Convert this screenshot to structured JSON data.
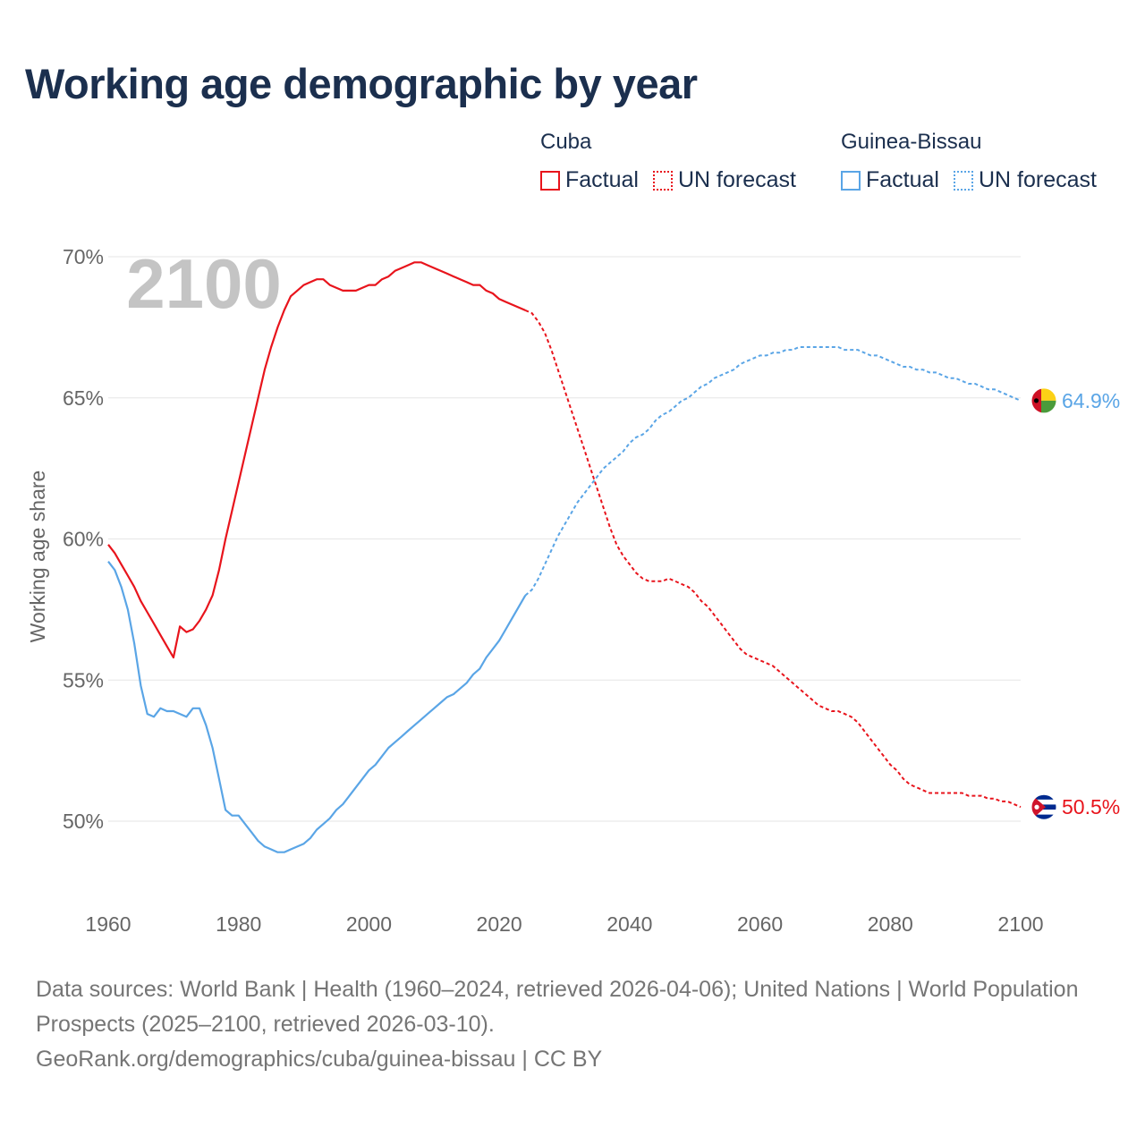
{
  "title": "Working age demographic by year",
  "legend": {
    "groups": [
      {
        "country": "Cuba",
        "color": "#e8141c",
        "factual_label": "Factual",
        "forecast_label": "UN forecast"
      },
      {
        "country": "Guinea-Bissau",
        "color": "#5aa5e6",
        "factual_label": "Factual",
        "forecast_label": "UN forecast"
      }
    ]
  },
  "year_watermark": "2100",
  "footer": {
    "sources": "Data sources: World Bank | Health (1960–2024, retrieved 2026-04-06); United Nations | World Population Prospects (2025–2100, retrieved 2026-03-10).",
    "credit": "GeoRank.org/demographics/cuba/guinea-bissau | CC BY"
  },
  "chart_data": {
    "type": "line",
    "title": "Working age demographic by year",
    "xlabel": "",
    "ylabel": "Working age share",
    "xlim": [
      1960,
      2100
    ],
    "ylim": [
      47.5,
      70.5
    ],
    "x_ticks": [
      "1960",
      "1980",
      "2000",
      "2020",
      "2040",
      "2060",
      "2080",
      "2100"
    ],
    "x_tick_values": [
      1960,
      1980,
      2000,
      2020,
      2040,
      2060,
      2080,
      2100
    ],
    "y_ticks": [
      "50%",
      "55%",
      "60%",
      "65%",
      "70%"
    ],
    "y_tick_values": [
      50,
      55,
      60,
      65,
      70
    ],
    "grid": true,
    "forecast_start": 2024,
    "series": [
      {
        "name": "Cuba",
        "color": "#e8141c",
        "end_label": "50.5%",
        "flag": "cuba",
        "factual": [
          [
            1960,
            59.8
          ],
          [
            1961,
            59.5
          ],
          [
            1962,
            59.1
          ],
          [
            1963,
            58.7
          ],
          [
            1964,
            58.3
          ],
          [
            1965,
            57.8
          ],
          [
            1966,
            57.4
          ],
          [
            1967,
            57.0
          ],
          [
            1968,
            56.6
          ],
          [
            1969,
            56.2
          ],
          [
            1970,
            55.8
          ],
          [
            1971,
            56.9
          ],
          [
            1972,
            56.7
          ],
          [
            1973,
            56.8
          ],
          [
            1974,
            57.1
          ],
          [
            1975,
            57.5
          ],
          [
            1976,
            58.0
          ],
          [
            1977,
            58.9
          ],
          [
            1978,
            60.0
          ],
          [
            1979,
            61.0
          ],
          [
            1980,
            62.0
          ],
          [
            1981,
            63.0
          ],
          [
            1982,
            64.0
          ],
          [
            1983,
            65.0
          ],
          [
            1984,
            66.0
          ],
          [
            1985,
            66.8
          ],
          [
            1986,
            67.5
          ],
          [
            1987,
            68.1
          ],
          [
            1988,
            68.6
          ],
          [
            1989,
            68.8
          ],
          [
            1990,
            69.0
          ],
          [
            1991,
            69.1
          ],
          [
            1992,
            69.2
          ],
          [
            1993,
            69.2
          ],
          [
            1994,
            69.0
          ],
          [
            1995,
            68.9
          ],
          [
            1996,
            68.8
          ],
          [
            1997,
            68.8
          ],
          [
            1998,
            68.8
          ],
          [
            1999,
            68.9
          ],
          [
            2000,
            69.0
          ],
          [
            2001,
            69.0
          ],
          [
            2002,
            69.2
          ],
          [
            2003,
            69.3
          ],
          [
            2004,
            69.5
          ],
          [
            2005,
            69.6
          ],
          [
            2006,
            69.7
          ],
          [
            2007,
            69.8
          ],
          [
            2008,
            69.8
          ],
          [
            2009,
            69.7
          ],
          [
            2010,
            69.6
          ],
          [
            2011,
            69.5
          ],
          [
            2012,
            69.4
          ],
          [
            2013,
            69.3
          ],
          [
            2014,
            69.2
          ],
          [
            2015,
            69.1
          ],
          [
            2016,
            69.0
          ],
          [
            2017,
            69.0
          ],
          [
            2018,
            68.8
          ],
          [
            2019,
            68.7
          ],
          [
            2020,
            68.5
          ],
          [
            2021,
            68.4
          ],
          [
            2022,
            68.3
          ],
          [
            2023,
            68.2
          ],
          [
            2024,
            68.1
          ]
        ],
        "forecast": [
          [
            2024,
            68.1
          ],
          [
            2025,
            68.0
          ],
          [
            2026,
            67.7
          ],
          [
            2027,
            67.3
          ],
          [
            2028,
            66.7
          ],
          [
            2029,
            66.0
          ],
          [
            2030,
            65.3
          ],
          [
            2031,
            64.6
          ],
          [
            2032,
            63.9
          ],
          [
            2033,
            63.2
          ],
          [
            2034,
            62.5
          ],
          [
            2035,
            61.8
          ],
          [
            2036,
            61.1
          ],
          [
            2037,
            60.4
          ],
          [
            2038,
            59.8
          ],
          [
            2039,
            59.4
          ],
          [
            2040,
            59.1
          ],
          [
            2041,
            58.8
          ],
          [
            2042,
            58.6
          ],
          [
            2043,
            58.5
          ],
          [
            2044,
            58.5
          ],
          [
            2045,
            58.5
          ],
          [
            2046,
            58.6
          ],
          [
            2047,
            58.5
          ],
          [
            2048,
            58.4
          ],
          [
            2049,
            58.3
          ],
          [
            2050,
            58.1
          ],
          [
            2051,
            57.8
          ],
          [
            2052,
            57.6
          ],
          [
            2053,
            57.3
          ],
          [
            2054,
            57.0
          ],
          [
            2055,
            56.7
          ],
          [
            2056,
            56.4
          ],
          [
            2057,
            56.1
          ],
          [
            2058,
            55.9
          ],
          [
            2059,
            55.8
          ],
          [
            2060,
            55.7
          ],
          [
            2061,
            55.6
          ],
          [
            2062,
            55.5
          ],
          [
            2063,
            55.3
          ],
          [
            2064,
            55.1
          ],
          [
            2065,
            54.9
          ],
          [
            2066,
            54.7
          ],
          [
            2067,
            54.5
          ],
          [
            2068,
            54.3
          ],
          [
            2069,
            54.1
          ],
          [
            2070,
            54.0
          ],
          [
            2071,
            53.9
          ],
          [
            2072,
            53.9
          ],
          [
            2073,
            53.8
          ],
          [
            2074,
            53.7
          ],
          [
            2075,
            53.5
          ],
          [
            2076,
            53.2
          ],
          [
            2077,
            52.9
          ],
          [
            2078,
            52.6
          ],
          [
            2079,
            52.3
          ],
          [
            2080,
            52.0
          ],
          [
            2081,
            51.8
          ],
          [
            2082,
            51.5
          ],
          [
            2083,
            51.3
          ],
          [
            2084,
            51.2
          ],
          [
            2085,
            51.1
          ],
          [
            2086,
            51.0
          ],
          [
            2087,
            51.0
          ],
          [
            2088,
            51.0
          ],
          [
            2089,
            51.0
          ],
          [
            2090,
            51.0
          ],
          [
            2091,
            51.0
          ],
          [
            2092,
            50.9
          ],
          [
            2093,
            50.9
          ],
          [
            2094,
            50.9
          ],
          [
            2095,
            50.8
          ],
          [
            2096,
            50.8
          ],
          [
            2097,
            50.7
          ],
          [
            2098,
            50.7
          ],
          [
            2099,
            50.6
          ],
          [
            2100,
            50.5
          ]
        ]
      },
      {
        "name": "Guinea-Bissau",
        "color": "#5aa5e6",
        "end_label": "64.9%",
        "flag": "guinea-bissau",
        "factual": [
          [
            1960,
            59.2
          ],
          [
            1961,
            58.9
          ],
          [
            1962,
            58.3
          ],
          [
            1963,
            57.5
          ],
          [
            1964,
            56.3
          ],
          [
            1965,
            54.8
          ],
          [
            1966,
            53.8
          ],
          [
            1967,
            53.7
          ],
          [
            1968,
            54.0
          ],
          [
            1969,
            53.9
          ],
          [
            1970,
            53.9
          ],
          [
            1971,
            53.8
          ],
          [
            1972,
            53.7
          ],
          [
            1973,
            54.0
          ],
          [
            1974,
            54.0
          ],
          [
            1975,
            53.4
          ],
          [
            1976,
            52.6
          ],
          [
            1977,
            51.5
          ],
          [
            1978,
            50.4
          ],
          [
            1979,
            50.2
          ],
          [
            1980,
            50.2
          ],
          [
            1981,
            49.9
          ],
          [
            1982,
            49.6
          ],
          [
            1983,
            49.3
          ],
          [
            1984,
            49.1
          ],
          [
            1985,
            49.0
          ],
          [
            1986,
            48.9
          ],
          [
            1987,
            48.9
          ],
          [
            1988,
            49.0
          ],
          [
            1989,
            49.1
          ],
          [
            1990,
            49.2
          ],
          [
            1991,
            49.4
          ],
          [
            1992,
            49.7
          ],
          [
            1993,
            49.9
          ],
          [
            1994,
            50.1
          ],
          [
            1995,
            50.4
          ],
          [
            1996,
            50.6
          ],
          [
            1997,
            50.9
          ],
          [
            1998,
            51.2
          ],
          [
            1999,
            51.5
          ],
          [
            2000,
            51.8
          ],
          [
            2001,
            52.0
          ],
          [
            2002,
            52.3
          ],
          [
            2003,
            52.6
          ],
          [
            2004,
            52.8
          ],
          [
            2005,
            53.0
          ],
          [
            2006,
            53.2
          ],
          [
            2007,
            53.4
          ],
          [
            2008,
            53.6
          ],
          [
            2009,
            53.8
          ],
          [
            2010,
            54.0
          ],
          [
            2011,
            54.2
          ],
          [
            2012,
            54.4
          ],
          [
            2013,
            54.5
          ],
          [
            2014,
            54.7
          ],
          [
            2015,
            54.9
          ],
          [
            2016,
            55.2
          ],
          [
            2017,
            55.4
          ],
          [
            2018,
            55.8
          ],
          [
            2019,
            56.1
          ],
          [
            2020,
            56.4
          ],
          [
            2021,
            56.8
          ],
          [
            2022,
            57.2
          ],
          [
            2023,
            57.6
          ],
          [
            2024,
            58.0
          ]
        ],
        "forecast": [
          [
            2024,
            58.0
          ],
          [
            2025,
            58.2
          ],
          [
            2026,
            58.6
          ],
          [
            2027,
            59.1
          ],
          [
            2028,
            59.6
          ],
          [
            2029,
            60.1
          ],
          [
            2030,
            60.5
          ],
          [
            2031,
            60.9
          ],
          [
            2032,
            61.3
          ],
          [
            2033,
            61.6
          ],
          [
            2034,
            61.9
          ],
          [
            2035,
            62.2
          ],
          [
            2036,
            62.5
          ],
          [
            2037,
            62.7
          ],
          [
            2038,
            62.9
          ],
          [
            2039,
            63.1
          ],
          [
            2040,
            63.4
          ],
          [
            2041,
            63.6
          ],
          [
            2042,
            63.7
          ],
          [
            2043,
            63.9
          ],
          [
            2044,
            64.2
          ],
          [
            2045,
            64.4
          ],
          [
            2046,
            64.5
          ],
          [
            2047,
            64.7
          ],
          [
            2048,
            64.9
          ],
          [
            2049,
            65.0
          ],
          [
            2050,
            65.2
          ],
          [
            2051,
            65.4
          ],
          [
            2052,
            65.5
          ],
          [
            2053,
            65.7
          ],
          [
            2054,
            65.8
          ],
          [
            2055,
            65.9
          ],
          [
            2056,
            66.0
          ],
          [
            2057,
            66.2
          ],
          [
            2058,
            66.3
          ],
          [
            2059,
            66.4
          ],
          [
            2060,
            66.5
          ],
          [
            2061,
            66.5
          ],
          [
            2062,
            66.6
          ],
          [
            2063,
            66.6
          ],
          [
            2064,
            66.7
          ],
          [
            2065,
            66.7
          ],
          [
            2066,
            66.8
          ],
          [
            2067,
            66.8
          ],
          [
            2068,
            66.8
          ],
          [
            2069,
            66.8
          ],
          [
            2070,
            66.8
          ],
          [
            2071,
            66.8
          ],
          [
            2072,
            66.8
          ],
          [
            2073,
            66.7
          ],
          [
            2074,
            66.7
          ],
          [
            2075,
            66.7
          ],
          [
            2076,
            66.6
          ],
          [
            2077,
            66.5
          ],
          [
            2078,
            66.5
          ],
          [
            2079,
            66.4
          ],
          [
            2080,
            66.3
          ],
          [
            2081,
            66.2
          ],
          [
            2082,
            66.1
          ],
          [
            2083,
            66.1
          ],
          [
            2084,
            66.0
          ],
          [
            2085,
            66.0
          ],
          [
            2086,
            65.9
          ],
          [
            2087,
            65.9
          ],
          [
            2088,
            65.8
          ],
          [
            2089,
            65.7
          ],
          [
            2090,
            65.7
          ],
          [
            2091,
            65.6
          ],
          [
            2092,
            65.5
          ],
          [
            2093,
            65.5
          ],
          [
            2094,
            65.4
          ],
          [
            2095,
            65.3
          ],
          [
            2096,
            65.3
          ],
          [
            2097,
            65.2
          ],
          [
            2098,
            65.1
          ],
          [
            2099,
            65.0
          ],
          [
            2100,
            64.9
          ]
        ]
      }
    ]
  }
}
